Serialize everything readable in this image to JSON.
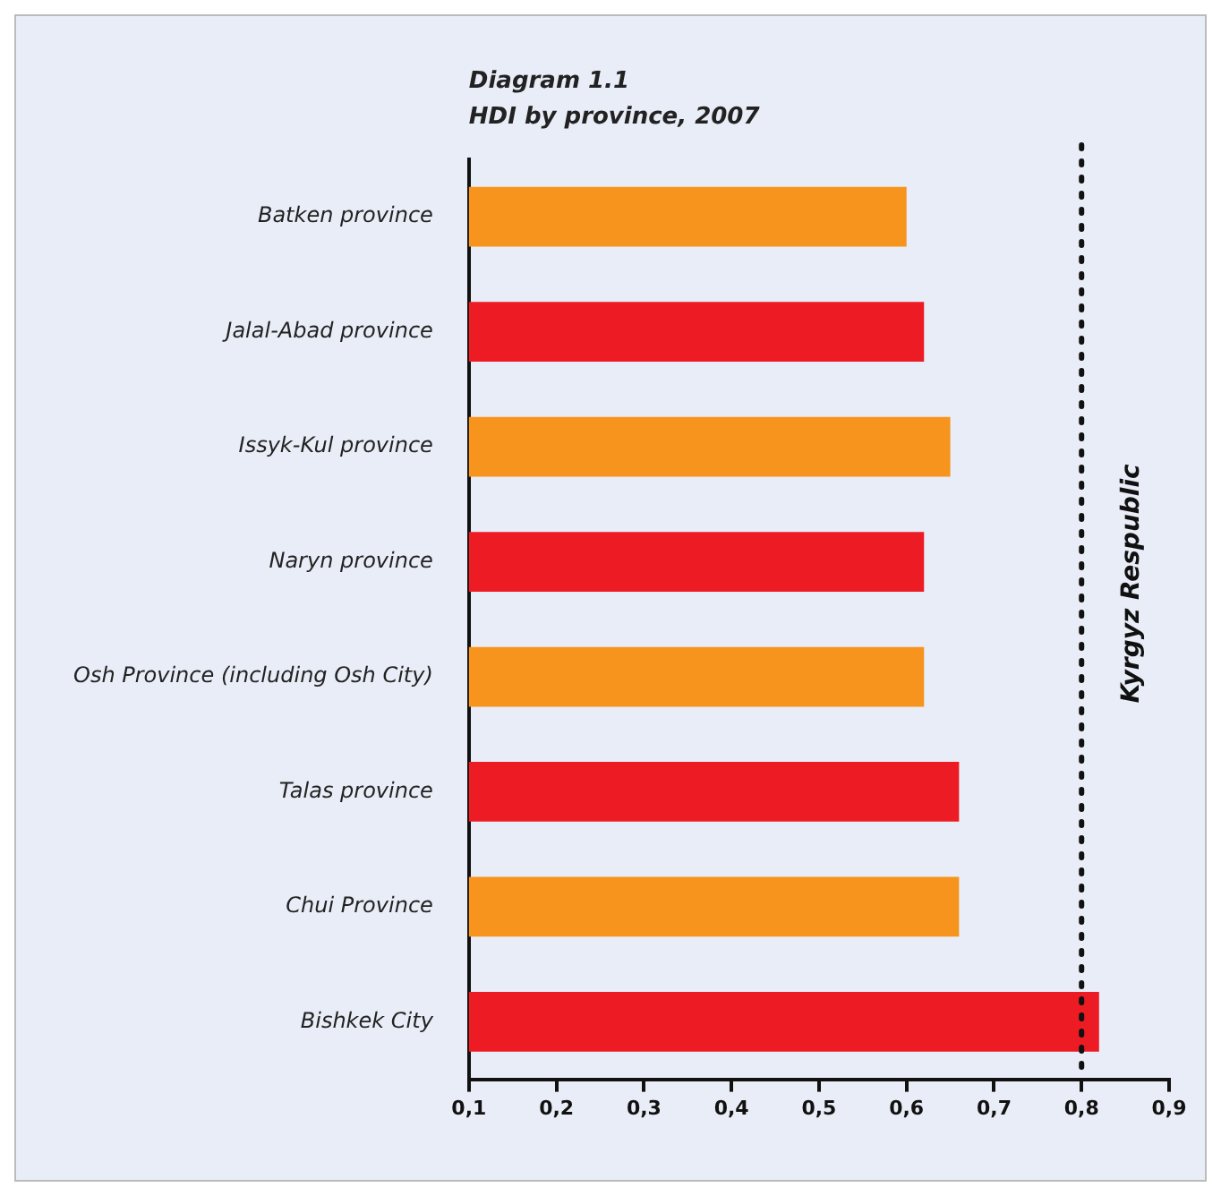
{
  "chart_data": {
    "type": "bar",
    "orientation": "horizontal",
    "title": "Diagram 1.1",
    "subtitle": "HDI by province, 2007",
    "categories": [
      "Batken province",
      "Jalal-Abad province",
      "Issyk-Kul province",
      "Naryn province",
      "Osh Province (including Osh City)",
      "Talas province",
      "Chui Province",
      "Bishkek City"
    ],
    "values": [
      0.6,
      0.62,
      0.65,
      0.62,
      0.62,
      0.66,
      0.66,
      0.82
    ],
    "colors": [
      "#f7941d",
      "#ed1c24",
      "#f7941d",
      "#ed1c24",
      "#f7941d",
      "#ed1c24",
      "#f7941d",
      "#ed1c24"
    ],
    "xlim": [
      0.1,
      0.9
    ],
    "xticks": [
      {
        "value": 0.1,
        "label": "0,1"
      },
      {
        "value": 0.2,
        "label": "0,2"
      },
      {
        "value": 0.3,
        "label": "0,3"
      },
      {
        "value": 0.4,
        "label": "0,4"
      },
      {
        "value": 0.5,
        "label": "0,5"
      },
      {
        "value": 0.6,
        "label": "0,6"
      },
      {
        "value": 0.7,
        "label": "0,7"
      },
      {
        "value": 0.8,
        "label": "0,8"
      },
      {
        "value": 0.9,
        "label": "0,9"
      }
    ],
    "ref_lines": [
      {
        "axis": "x",
        "value": 0.8,
        "label": "Kyrgyz Respublic",
        "color": "#111111",
        "line_style": "dotted"
      }
    ],
    "grid": false,
    "legend": false
  }
}
